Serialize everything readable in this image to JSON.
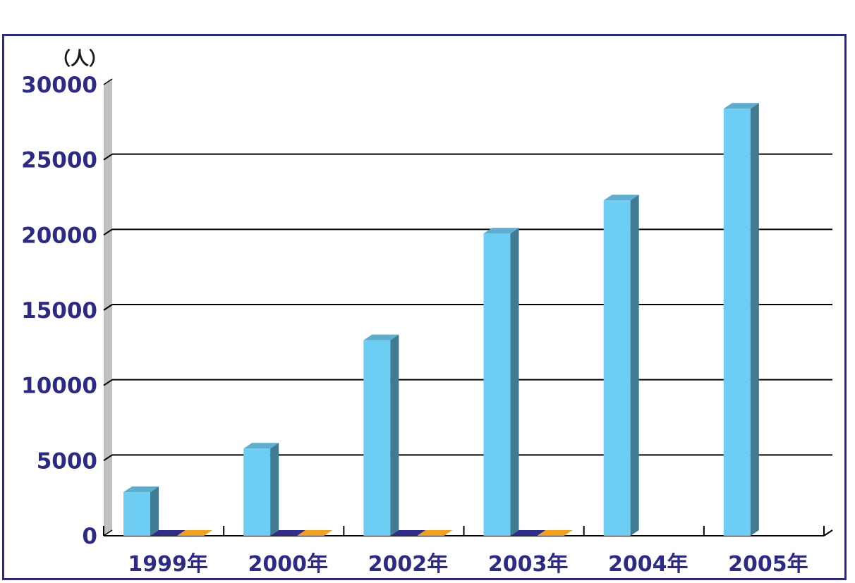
{
  "chart_data": {
    "type": "bar",
    "title": "",
    "unit_label": "（人）",
    "xlabel": "",
    "ylabel": "",
    "ylim": [
      0,
      30000
    ],
    "yticks": [
      0,
      5000,
      10000,
      15000,
      20000,
      25000,
      30000
    ],
    "ytick_labels": [
      "0",
      "5000",
      "10000",
      "15000",
      "20000",
      "25000",
      "30000"
    ],
    "categories": [
      "1999年",
      "2000年",
      "2002年",
      "2003年",
      "2004年",
      "2005年"
    ],
    "series": [
      {
        "values": [
          2900,
          5800,
          13000,
          20100,
          22300,
          28400
        ],
        "color": "#6dcdf2"
      },
      {
        "values": [
          0,
          0,
          0,
          0,
          null,
          null
        ],
        "color": "#2e2c8c"
      },
      {
        "values": [
          0,
          0,
          0,
          0,
          null,
          null
        ],
        "color": "#f5a01a"
      }
    ],
    "grid": true,
    "legend": "none",
    "style": "3d"
  },
  "colors": {
    "frame": "#2b2a86",
    "text": "#2b2a86",
    "gridline": "#000000",
    "wall": "#c0c0c0"
  }
}
